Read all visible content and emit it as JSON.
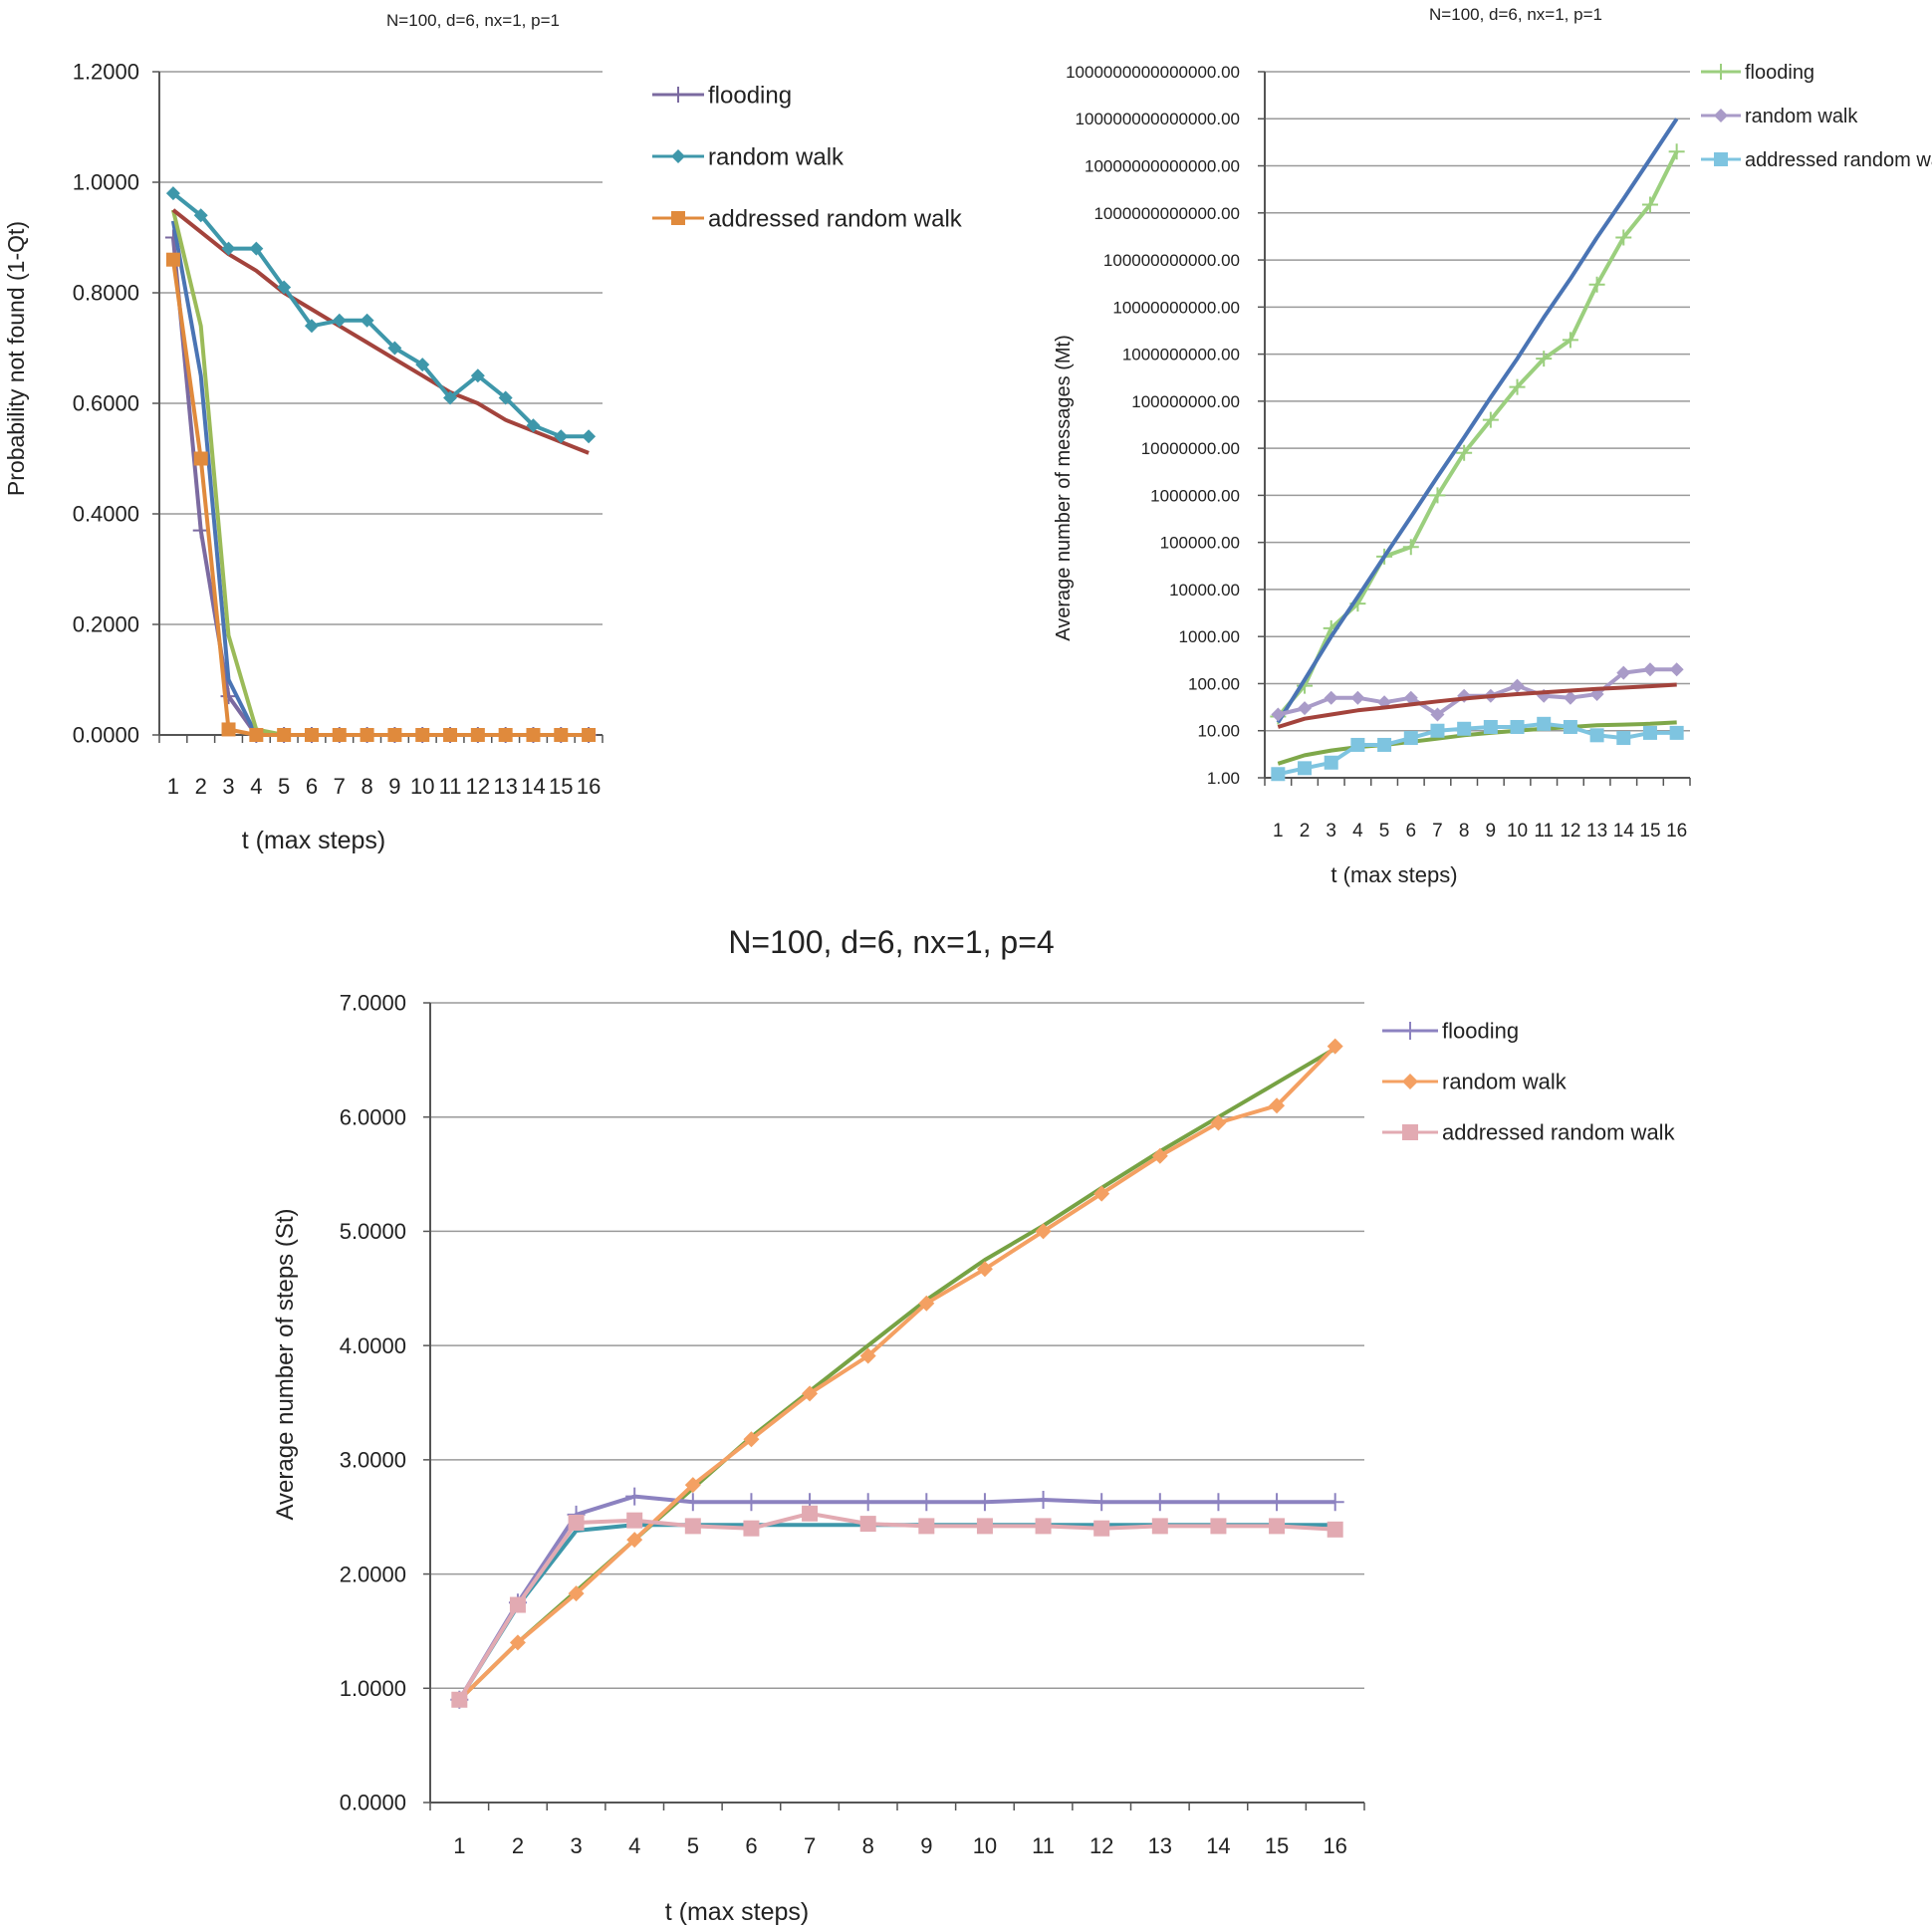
{
  "chart_data": [
    {
      "id": "prob",
      "type": "line",
      "title": "N=100, d=6, nx=1, p=1",
      "xlabel": "t (max steps)",
      "ylabel": "Probability not found (1-Qt)",
      "categories": [
        "1",
        "2",
        "3",
        "4",
        "5",
        "6",
        "7",
        "8",
        "9",
        "10",
        "11",
        "12",
        "13",
        "14",
        "15",
        "16"
      ],
      "ylim": [
        0,
        1.2
      ],
      "yticks": [
        "0.0000",
        "0.2000",
        "0.4000",
        "0.6000",
        "0.8000",
        "1.0000",
        "1.2000"
      ],
      "grid": true,
      "legend_position": "top-right",
      "series": [
        {
          "name": "flooding",
          "color": "#7b6aa0",
          "marker": "plus",
          "legend": true,
          "values": [
            0.9,
            0.37,
            0.07,
            0.0,
            0,
            0,
            0,
            0,
            0,
            0,
            0,
            0,
            0,
            0,
            0,
            0
          ]
        },
        {
          "name": "",
          "color": "#4a74b4",
          "marker": "none",
          "legend": false,
          "values": [
            0.93,
            0.65,
            0.1,
            0.0,
            0,
            0,
            0,
            0,
            0,
            0,
            0,
            0,
            0,
            0,
            0,
            0
          ]
        },
        {
          "name": "",
          "color": "#9bbb59",
          "marker": "none",
          "legend": false,
          "values": [
            0.95,
            0.74,
            0.18,
            0.01,
            0,
            0,
            0,
            0,
            0,
            0,
            0,
            0,
            0,
            0,
            0,
            0
          ]
        },
        {
          "name": "",
          "color": "#a3433c",
          "marker": "none",
          "legend": false,
          "values": [
            0.95,
            0.91,
            0.87,
            0.84,
            0.8,
            0.77,
            0.74,
            0.71,
            0.68,
            0.65,
            0.62,
            0.6,
            0.57,
            0.55,
            0.53,
            0.51
          ]
        },
        {
          "name": "random walk",
          "color": "#3e97aa",
          "marker": "diamond",
          "legend": true,
          "values": [
            0.98,
            0.94,
            0.88,
            0.88,
            0.81,
            0.74,
            0.75,
            0.75,
            0.7,
            0.67,
            0.61,
            0.65,
            0.61,
            0.56,
            0.54,
            0.54
          ]
        },
        {
          "name": "addressed random walk",
          "color": "#e08a3c",
          "marker": "square",
          "legend": true,
          "values": [
            0.86,
            0.5,
            0.01,
            0.0,
            0,
            0,
            0,
            0,
            0,
            0,
            0,
            0,
            0,
            0,
            0,
            0
          ]
        }
      ]
    },
    {
      "id": "msgs",
      "type": "line",
      "title": "N=100, d=6, nx=1, p=1",
      "xlabel": "t (max steps)",
      "ylabel": "Average number of messages (Mt)",
      "categories": [
        "1",
        "2",
        "3",
        "4",
        "5",
        "6",
        "7",
        "8",
        "9",
        "10",
        "11",
        "12",
        "13",
        "14",
        "15",
        "16"
      ],
      "yscale": "log",
      "ylim": [
        1,
        1000000000000000
      ],
      "yticks": [
        "1.00",
        "10.00",
        "100.00",
        "1000.00",
        "10000.00",
        "100000.00",
        "1000000.00",
        "10000000.00",
        "100000000.00",
        "1000000000.00",
        "10000000000.00",
        "100000000000.00",
        "1000000000000.00",
        "10000000000000.00",
        "100000000000000.00",
        "1000000000000000.00"
      ],
      "grid": true,
      "legend_position": "top-right",
      "series": [
        {
          "name": "flooding",
          "color": "#9bcf7e",
          "marker": "plus",
          "legend": true,
          "values": [
            20,
            90,
            1500,
            5000,
            50000,
            80000,
            1000000,
            8000000,
            40000000,
            200000000,
            800000000,
            2000000000,
            30000000000,
            300000000000,
            1500000000000,
            20000000000000
          ]
        },
        {
          "name": "",
          "color": "#4a74b4",
          "marker": "none",
          "legend": false,
          "values": [
            15,
            120,
            1000,
            7000,
            50000,
            350000,
            2500000,
            17000000,
            120000000,
            800000000,
            6000000000,
            40000000000,
            300000000000,
            2000000000000,
            14000000000000,
            100000000000000
          ]
        },
        {
          "name": "random walk",
          "color": "#a99bc8",
          "marker": "diamond",
          "legend": true,
          "values": [
            22,
            30,
            50,
            50,
            40,
            50,
            22,
            55,
            55,
            90,
            55,
            50,
            60,
            170,
            200,
            200
          ]
        },
        {
          "name": "",
          "color": "#a3433c",
          "marker": "none",
          "legend": false,
          "values": [
            12,
            18,
            22,
            27,
            31,
            36,
            42,
            48,
            54,
            60,
            65,
            71,
            77,
            82,
            88,
            95
          ]
        },
        {
          "name": "",
          "color": "#7fa84a",
          "marker": "none",
          "legend": false,
          "values": [
            2,
            3,
            3.8,
            4.5,
            5,
            5.8,
            6.8,
            8,
            9,
            10,
            11,
            12,
            13,
            13.5,
            14,
            15
          ]
        },
        {
          "name": "addressed random walk",
          "color": "#7ec4e0",
          "marker": "square",
          "legend": true,
          "values": [
            1.2,
            1.6,
            2.1,
            5,
            5,
            7,
            10,
            11,
            12,
            12,
            14,
            12,
            8,
            7,
            9,
            9
          ]
        }
      ]
    },
    {
      "id": "steps",
      "type": "line",
      "title": "N=100, d=6, nx=1, p=4",
      "xlabel": "t (max steps)",
      "ylabel": "Average number of steps (St)",
      "categories": [
        "1",
        "2",
        "3",
        "4",
        "5",
        "6",
        "7",
        "8",
        "9",
        "10",
        "11",
        "12",
        "13",
        "14",
        "15",
        "16"
      ],
      "ylim": [
        0,
        7
      ],
      "yticks": [
        "0.0000",
        "1.0000",
        "2.0000",
        "3.0000",
        "4.0000",
        "5.0000",
        "6.0000",
        "7.0000"
      ],
      "grid": true,
      "legend_position": "right",
      "series": [
        {
          "name": "",
          "color": "#77a244",
          "marker": "none",
          "legend": false,
          "values": [
            0.9,
            1.4,
            1.85,
            2.3,
            2.75,
            3.2,
            3.6,
            4.0,
            4.4,
            4.75,
            5.05,
            5.38,
            5.7,
            6.0,
            6.3,
            6.6
          ]
        },
        {
          "name": "",
          "color": "#3e97aa",
          "marker": "none",
          "legend": false,
          "values": [
            0.9,
            1.72,
            2.38,
            2.43,
            2.43,
            2.43,
            2.43,
            2.43,
            2.43,
            2.43,
            2.43,
            2.43,
            2.43,
            2.43,
            2.43,
            2.43
          ]
        },
        {
          "name": "flooding",
          "color": "#8c82c0",
          "marker": "plus",
          "legend": true,
          "values": [
            0.9,
            1.75,
            2.52,
            2.68,
            2.63,
            2.63,
            2.63,
            2.63,
            2.63,
            2.63,
            2.65,
            2.63,
            2.63,
            2.63,
            2.63,
            2.63
          ]
        },
        {
          "name": "random walk",
          "color": "#f4a062",
          "marker": "diamond",
          "legend": true,
          "values": [
            0.9,
            1.4,
            1.83,
            2.3,
            2.78,
            3.18,
            3.58,
            3.91,
            4.37,
            4.67,
            5.0,
            5.33,
            5.66,
            5.95,
            6.1,
            6.62
          ]
        },
        {
          "name": "addressed random walk",
          "color": "#e2aab2",
          "marker": "square",
          "legend": true,
          "values": [
            0.9,
            1.73,
            2.45,
            2.47,
            2.42,
            2.4,
            2.53,
            2.44,
            2.42,
            2.42,
            2.42,
            2.4,
            2.42,
            2.42,
            2.42,
            2.39
          ]
        }
      ]
    }
  ]
}
